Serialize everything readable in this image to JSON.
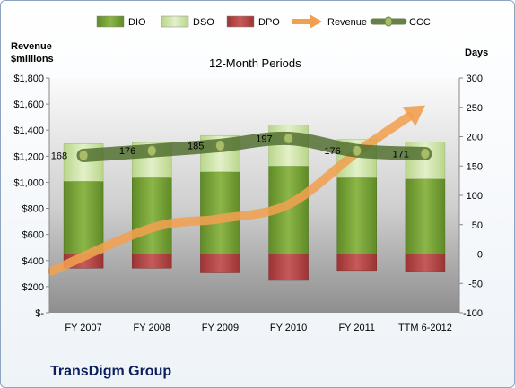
{
  "chart_data": {
    "type": "bar",
    "subtitle": "12-Month Periods",
    "company": "TransDigm Group",
    "ylabel_left": "Revenue\n$millions",
    "ylabel_right": "Days",
    "categories": [
      "FY 2007",
      "FY 2008",
      "FY 2009",
      "FY 2010",
      "FY 2011",
      "TTM 6-2012"
    ],
    "left_axis": {
      "ylim": [
        0,
        1800
      ],
      "ticks": [
        0,
        200,
        400,
        600,
        800,
        1000,
        1200,
        1400,
        1600,
        1800
      ],
      "tick_labels": [
        "$-",
        "$200",
        "$400",
        "$600",
        "$800",
        "$1,000",
        "$1,200",
        "$1,400",
        "$1,600",
        "$1,800"
      ]
    },
    "right_axis": {
      "ylim": [
        -100,
        300
      ],
      "ticks": [
        -100,
        -50,
        0,
        50,
        100,
        150,
        200,
        250,
        300
      ],
      "tick_labels": [
        "-100",
        "-50",
        "0",
        "50",
        "100",
        "150",
        "200",
        "250",
        "300"
      ]
    },
    "series": [
      {
        "name": "DIO",
        "axis": "right",
        "kind": "bar-stacked",
        "values": [
          124,
          130,
          140,
          150,
          130,
          128
        ],
        "color": "#7aa33a"
      },
      {
        "name": "DSO",
        "axis": "right",
        "kind": "bar-stacked",
        "values": [
          64,
          60,
          62,
          70,
          65,
          63
        ],
        "color": "#d3e6b0"
      },
      {
        "name": "DPO",
        "axis": "right",
        "kind": "bar-negative",
        "values": [
          -24,
          -24,
          -32,
          -45,
          -28,
          -30
        ],
        "color": "#b84a4a"
      },
      {
        "name": "Revenue",
        "axis": "left",
        "kind": "arrow-line",
        "values": [
          320,
          650,
          720,
          830,
          1230,
          1590
        ],
        "color": "#f0a050"
      },
      {
        "name": "CCC",
        "axis": "right",
        "kind": "line",
        "values": [
          168,
          176,
          185,
          197,
          176,
          171
        ],
        "labels": [
          "168",
          "176",
          "185",
          "197",
          "176",
          "171"
        ],
        "color": "#4d6b2c"
      }
    ],
    "legend": {
      "position": "top",
      "entries": [
        "DIO",
        "DSO",
        "DPO",
        "Revenue",
        "CCC"
      ]
    },
    "grid": false
  }
}
